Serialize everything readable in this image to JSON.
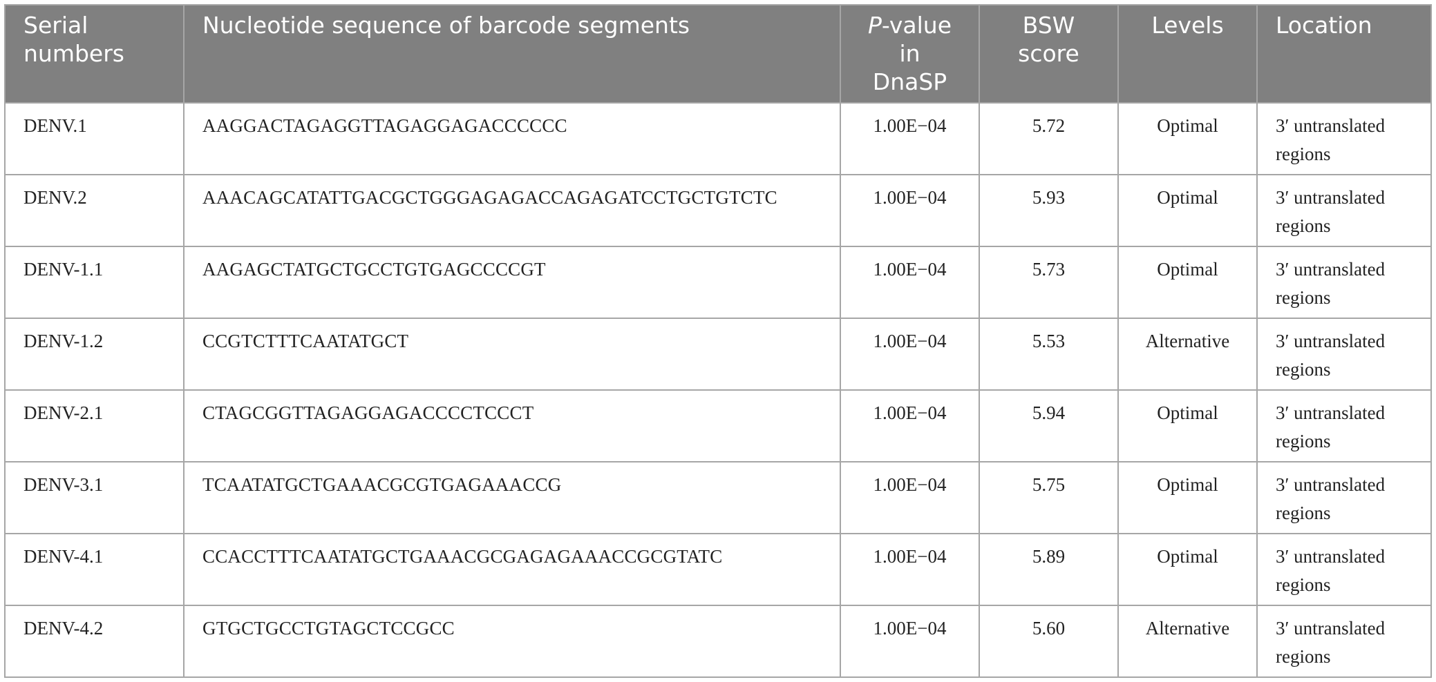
{
  "table": {
    "headers": {
      "serial": "Serial numbers",
      "sequence": "Nucleotide sequence of barcode segments",
      "pvalue_italic": "P",
      "pvalue_rest": "-value in DnaSP",
      "bsw": "BSW score",
      "levels": "Levels",
      "location": "Location"
    },
    "rows": [
      {
        "serial": "DENV.1",
        "sequence": "AAGGACTAGAGGTTAGAGGAGACCCCCC",
        "pvalue": "1.00E−04",
        "bsw": "5.72",
        "level": "Optimal",
        "location": "3′ untranslated regions"
      },
      {
        "serial": "DENV.2",
        "sequence": "AAACAGCATATTGACGCTGGGAGAGACCAGAGATCCTGCTGTCTC",
        "pvalue": "1.00E−04",
        "bsw": "5.93",
        "level": "Optimal",
        "location": "3′ untranslated regions"
      },
      {
        "serial": "DENV-1.1",
        "sequence": "AAGAGCTATGCTGCCTGTGAGCCCCGT",
        "pvalue": "1.00E−04",
        "bsw": "5.73",
        "level": "Optimal",
        "location": "3′ untranslated regions"
      },
      {
        "serial": "DENV-1.2",
        "sequence": "CCGTCTTTCAATATGCT",
        "pvalue": "1.00E−04",
        "bsw": "5.53",
        "level": "Alternative",
        "location": "3′ untranslated regions"
      },
      {
        "serial": "DENV-2.1",
        "sequence": "CTAGCGGTTAGAGGAGACCCCTCCCT",
        "pvalue": "1.00E−04",
        "bsw": "5.94",
        "level": "Optimal",
        "location": "3′ untranslated regions"
      },
      {
        "serial": "DENV-3.1",
        "sequence": "TCAATATGCTGAAACGCGTGAGAAACCG",
        "pvalue": "1.00E−04",
        "bsw": "5.75",
        "level": "Optimal",
        "location": "3′ untranslated regions"
      },
      {
        "serial": "DENV-4.1",
        "sequence": "CCACCTTTCAATATGCTGAAACGCGAGAGAAACCGCGTATC",
        "pvalue": "1.00E−04",
        "bsw": "5.89",
        "level": "Optimal",
        "location": "3′ untranslated regions"
      },
      {
        "serial": "DENV-4.2",
        "sequence": "GTGCTGCCTGTAGCTCCGCC",
        "pvalue": "1.00E−04",
        "bsw": "5.60",
        "level": "Alternative",
        "location": "3′ untranslated regions"
      }
    ]
  },
  "colors": {
    "header_bg": "#808080",
    "header_text": "#ffffff",
    "grid_line": "#a6a6a6",
    "body_text": "#222222"
  }
}
